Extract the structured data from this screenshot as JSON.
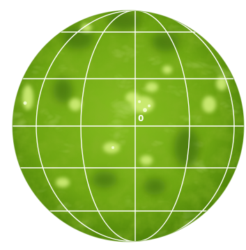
{
  "image": {
    "subject": "solar disk",
    "colors": {
      "background": "#ffffff",
      "disk_base": "#7fb51a",
      "disk_light": "#c8ec6a",
      "disk_dark": "#3f6e07",
      "grid": "#ffffff"
    }
  },
  "center_marker": {
    "label": "0"
  }
}
